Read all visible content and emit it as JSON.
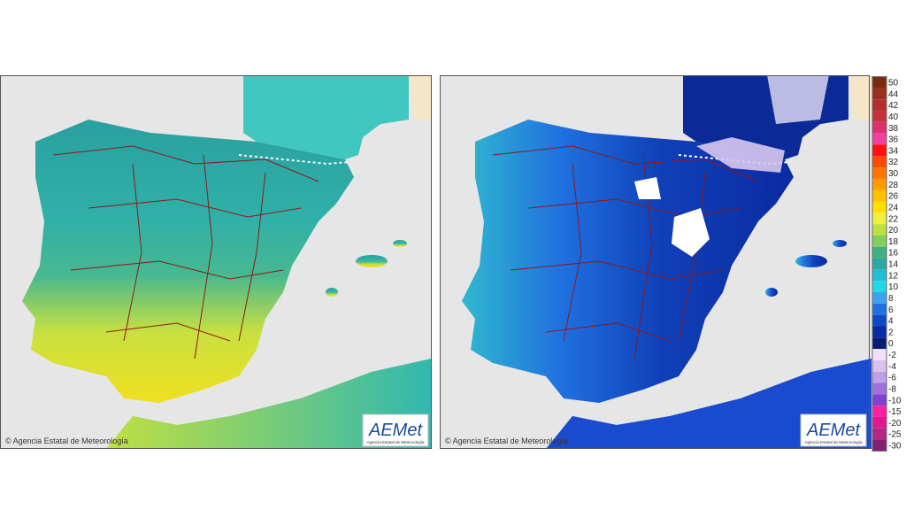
{
  "maps": [
    {
      "credit": "© Agencia Estatal de Meteorología",
      "logo": "AEMet",
      "logo_subtitle": "Agencia Estatal de Meteorología"
    },
    {
      "credit": "© Agencia Estatal de Meteorología",
      "logo": "AEMet",
      "logo_subtitle": "Agencia Estatal de Meteorología"
    }
  ],
  "legend": {
    "labels": [
      50,
      44,
      42,
      40,
      38,
      36,
      34,
      32,
      30,
      28,
      26,
      24,
      22,
      20,
      18,
      16,
      14,
      12,
      10,
      8,
      6,
      4,
      2,
      0,
      -2,
      -4,
      -6,
      -8,
      -10,
      -15,
      -20,
      -25,
      -30
    ],
    "colors": [
      "#7a2a10",
      "#9b3020",
      "#b03030",
      "#c83040",
      "#e03070",
      "#f040a0",
      "#ff1010",
      "#ff4a00",
      "#ff7400",
      "#ff9a00",
      "#ffc000",
      "#ffe000",
      "#f0f040",
      "#c0e040",
      "#80d060",
      "#40b080",
      "#30a8a0",
      "#20c0d0",
      "#20d8e8",
      "#40a0f0",
      "#2070e0",
      "#1048c8",
      "#0a2aa0",
      "#081c78",
      "#f0e0f8",
      "#d8c0f0",
      "#c0a0e8",
      "#a070e0",
      "#8040d0",
      "#ff20a0",
      "#e01890",
      "#b02880",
      "#802070"
    ]
  }
}
